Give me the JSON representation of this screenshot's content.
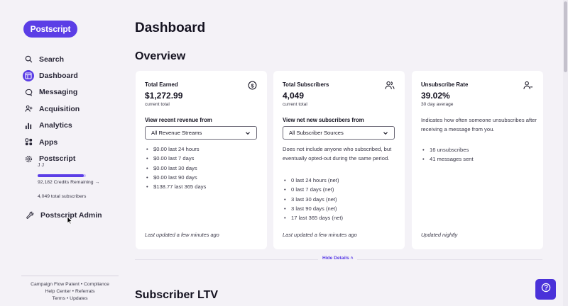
{
  "brand": {
    "logo_text": "Postscript",
    "accent": "#5b3ee6"
  },
  "sidebar": {
    "items": [
      {
        "label": "Search",
        "icon": "search-icon"
      },
      {
        "label": "Dashboard",
        "icon": "dashboard-icon",
        "active": true
      },
      {
        "label": "Messaging",
        "icon": "message-icon"
      },
      {
        "label": "Acquisition",
        "icon": "acquisition-icon"
      },
      {
        "label": "Analytics",
        "icon": "analytics-icon"
      },
      {
        "label": "Apps",
        "icon": "apps-icon"
      },
      {
        "label": "Postscript",
        "icon": "gear-icon"
      }
    ],
    "account_name": "J J",
    "credits_fraction": 0.95,
    "credits_text": "92,182 Credits Remaining →",
    "total_subscribers": "4,049 total subscribers",
    "admin_label": "Postscript Admin",
    "footer": {
      "line1a": "Campaign Flow Patent",
      "line1b": "Compliance",
      "line2a": "Help Center",
      "line2b": "Referrals",
      "line3a": "Terms",
      "line3b": "Updates",
      "sep": "•"
    }
  },
  "main": {
    "title": "Dashboard",
    "overview_title": "Overview",
    "ltv_title": "Subscriber LTV",
    "hide_details": "Hide Details ˄"
  },
  "cards": {
    "earned": {
      "title": "Total Earned",
      "value": "$1,272.99",
      "sub": "current total",
      "label": "View recent revenue from",
      "select": "All Revenue Streams",
      "items": [
        "$0.00 last 24 hours",
        "$0.00 last 7 days",
        "$0.00 last 30 days",
        "$0.00 last 90 days",
        "$138.77 last 365 days"
      ],
      "updated": "Last updated a few minutes ago"
    },
    "subscribers": {
      "title": "Total Subscribers",
      "value": "4,049",
      "sub": "current total",
      "label": "View net new subscribers from",
      "select": "All Subscriber Sources",
      "note": "Does not include anyone who subscribed, but eventually opted-out during the same period.",
      "items": [
        "0 last 24 hours (net)",
        "0 last 7 days (net)",
        "3 last 30 days (net)",
        "3 last 90 days (net)",
        "17 last 365 days (net)"
      ],
      "updated": "Last updated a few minutes ago"
    },
    "unsubscribe": {
      "title": "Unsubscribe Rate",
      "value": "39.02%",
      "sub": "30 day average",
      "note": "Indicates how often someone unsubscribes after receiving a message from you.",
      "items": [
        "16 unsubscribes",
        "41 messages sent"
      ],
      "updated": "Updated nightly"
    }
  }
}
